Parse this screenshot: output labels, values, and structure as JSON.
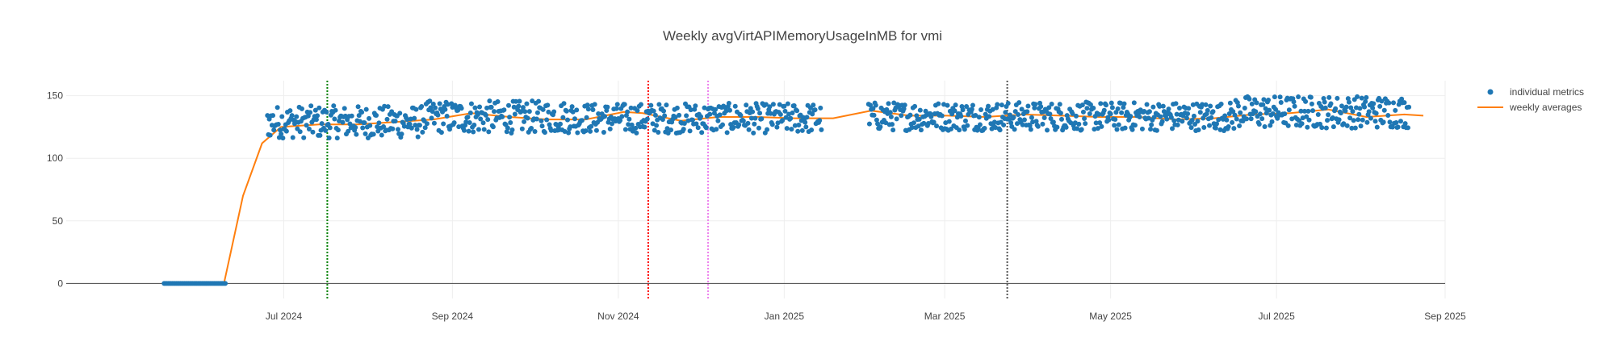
{
  "chart_data": {
    "type": "scatter",
    "title": "Weekly avgVirtAPIMemoryUsageInMB for vmi",
    "xlabel": "",
    "ylabel": "",
    "x_range": [
      "2024-04-12",
      "2025-09-01"
    ],
    "ylim": [
      -12,
      162
    ],
    "x_ticks": [
      {
        "date": "2024-07-01",
        "label": "Jul 2024"
      },
      {
        "date": "2024-09-01",
        "label": "Sep 2024"
      },
      {
        "date": "2024-11-01",
        "label": "Nov 2024"
      },
      {
        "date": "2025-01-01",
        "label": "Jan 2025"
      },
      {
        "date": "2025-03-01",
        "label": "Mar 2025"
      },
      {
        "date": "2025-05-01",
        "label": "May 2025"
      },
      {
        "date": "2025-07-01",
        "label": "Jul 2025"
      },
      {
        "date": "2025-09-01",
        "label": "Sep 2025"
      }
    ],
    "y_ticks": [
      0,
      50,
      100,
      150
    ],
    "grid": true,
    "legend_position": "top-right",
    "legend": [
      {
        "label": "individual metrics",
        "kind": "marker",
        "color": "#1f77b4"
      },
      {
        "label": "weekly averages",
        "kind": "line",
        "color": "#ff7f0e"
      }
    ],
    "vertical_lines": [
      {
        "date": "2024-07-17",
        "color": "#008000"
      },
      {
        "date": "2024-11-12",
        "color": "#ff0000"
      },
      {
        "date": "2024-12-04",
        "color": "#ee82ee"
      },
      {
        "date": "2025-03-24",
        "color": "#555555"
      }
    ],
    "series": [
      {
        "name": "individual metrics",
        "type": "scatter",
        "color": "#1f77b4",
        "note": "approximate daily samples; ~0 until late June 2024, then fluctuating between ~118 and ~148; gap around 2025-01-15 to 2025-02-01",
        "segments": [
          {
            "start": "2024-05-18",
            "end": "2024-06-09",
            "low": 0,
            "high": 0,
            "per_day": 2
          },
          {
            "start": "2024-06-25",
            "end": "2024-08-20",
            "low": 116,
            "high": 142,
            "per_day": 3
          },
          {
            "start": "2024-08-21",
            "end": "2024-10-15",
            "low": 120,
            "high": 146,
            "per_day": 3
          },
          {
            "start": "2024-10-16",
            "end": "2025-01-14",
            "low": 120,
            "high": 144,
            "per_day": 3
          },
          {
            "start": "2025-02-01",
            "end": "2025-06-15",
            "low": 122,
            "high": 145,
            "per_day": 3
          },
          {
            "start": "2025-06-16",
            "end": "2025-08-18",
            "low": 124,
            "high": 150,
            "per_day": 3
          }
        ]
      },
      {
        "name": "weekly averages",
        "type": "line",
        "color": "#ff7f0e",
        "points": [
          {
            "x": "2024-05-18",
            "y": 0
          },
          {
            "x": "2024-06-09",
            "y": 0
          },
          {
            "x": "2024-06-16",
            "y": 70
          },
          {
            "x": "2024-06-23",
            "y": 112
          },
          {
            "x": "2024-06-30",
            "y": 125
          },
          {
            "x": "2024-07-14",
            "y": 127
          },
          {
            "x": "2024-07-28",
            "y": 127
          },
          {
            "x": "2024-08-11",
            "y": 129
          },
          {
            "x": "2024-08-25",
            "y": 131
          },
          {
            "x": "2024-09-08",
            "y": 136
          },
          {
            "x": "2024-09-22",
            "y": 133
          },
          {
            "x": "2024-10-06",
            "y": 131
          },
          {
            "x": "2024-10-20",
            "y": 131
          },
          {
            "x": "2024-11-03",
            "y": 137
          },
          {
            "x": "2024-11-10",
            "y": 136
          },
          {
            "x": "2024-11-24",
            "y": 130
          },
          {
            "x": "2024-12-08",
            "y": 133
          },
          {
            "x": "2024-12-22",
            "y": 133
          },
          {
            "x": "2025-01-05",
            "y": 132
          },
          {
            "x": "2025-01-19",
            "y": 132
          },
          {
            "x": "2025-02-02",
            "y": 138
          },
          {
            "x": "2025-02-16",
            "y": 134
          },
          {
            "x": "2025-03-02",
            "y": 134
          },
          {
            "x": "2025-03-16",
            "y": 133
          },
          {
            "x": "2025-03-30",
            "y": 135
          },
          {
            "x": "2025-04-13",
            "y": 134
          },
          {
            "x": "2025-04-27",
            "y": 133
          },
          {
            "x": "2025-05-11",
            "y": 133
          },
          {
            "x": "2025-05-25",
            "y": 131
          },
          {
            "x": "2025-06-08",
            "y": 132
          },
          {
            "x": "2025-06-22",
            "y": 135
          },
          {
            "x": "2025-07-06",
            "y": 136
          },
          {
            "x": "2025-07-20",
            "y": 139
          },
          {
            "x": "2025-08-03",
            "y": 133
          },
          {
            "x": "2025-08-17",
            "y": 135
          },
          {
            "x": "2025-08-24",
            "y": 134
          }
        ]
      }
    ]
  }
}
